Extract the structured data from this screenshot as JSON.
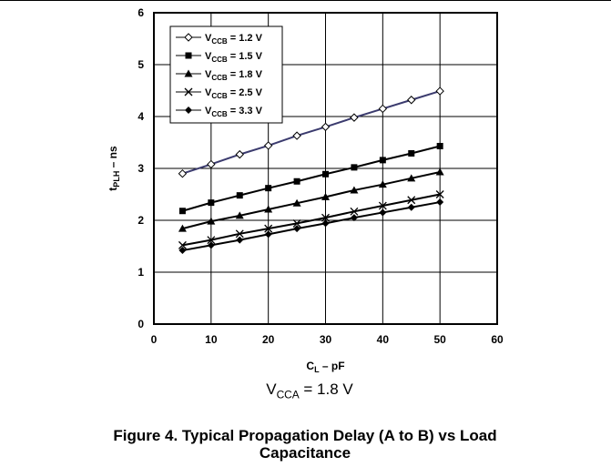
{
  "chart_data": {
    "type": "line",
    "xlabel": {
      "main": "C",
      "sub": "L",
      "rest": " – pF"
    },
    "ylabel": {
      "main": "t",
      "sub": "PLH",
      "rest": " – ns"
    },
    "xlim": [
      0,
      60
    ],
    "ylim": [
      0,
      6
    ],
    "xticks": [
      "0",
      "10",
      "20",
      "30",
      "40",
      "50",
      "60"
    ],
    "yticks": [
      "0",
      "1",
      "2",
      "3",
      "4",
      "5",
      "6"
    ],
    "grid": true,
    "legend_position": "top-left",
    "x": [
      5,
      10,
      15,
      20,
      25,
      30,
      35,
      40,
      45,
      50
    ],
    "series": [
      {
        "name_main": "V",
        "name_sub": "CCB",
        "name_rest": " = 1.2 V",
        "marker": "diamond-open",
        "values": [
          2.9,
          3.08,
          3.27,
          3.44,
          3.63,
          3.8,
          3.98,
          4.15,
          4.32,
          4.49
        ]
      },
      {
        "name_main": "V",
        "name_sub": "CCB",
        "name_rest": " = 1.5 V",
        "marker": "square",
        "values": [
          2.18,
          2.34,
          2.48,
          2.62,
          2.75,
          2.89,
          3.02,
          3.16,
          3.29,
          3.43
        ]
      },
      {
        "name_main": "V",
        "name_sub": "CCB",
        "name_rest": " = 1.8 V",
        "marker": "triangle",
        "values": [
          1.84,
          1.98,
          2.09,
          2.21,
          2.33,
          2.45,
          2.58,
          2.69,
          2.81,
          2.93
        ]
      },
      {
        "name_main": "V",
        "name_sub": "CCB",
        "name_rest": " = 2.5 V",
        "marker": "x",
        "values": [
          1.52,
          1.62,
          1.74,
          1.84,
          1.94,
          2.05,
          2.17,
          2.28,
          2.39,
          2.5
        ]
      },
      {
        "name_main": "V",
        "name_sub": "CCB",
        "name_rest": " = 3.3 V",
        "marker": "diamond",
        "values": [
          1.42,
          1.52,
          1.62,
          1.73,
          1.84,
          1.94,
          2.05,
          2.15,
          2.25,
          2.35
        ]
      }
    ]
  },
  "condition": {
    "main": "V",
    "sub": "CCA",
    "rest": " = 1.8 V"
  },
  "caption": {
    "line1": "Figure 4. Typical Propagation Delay (A to B) vs Load",
    "line2": "Capacitance"
  }
}
